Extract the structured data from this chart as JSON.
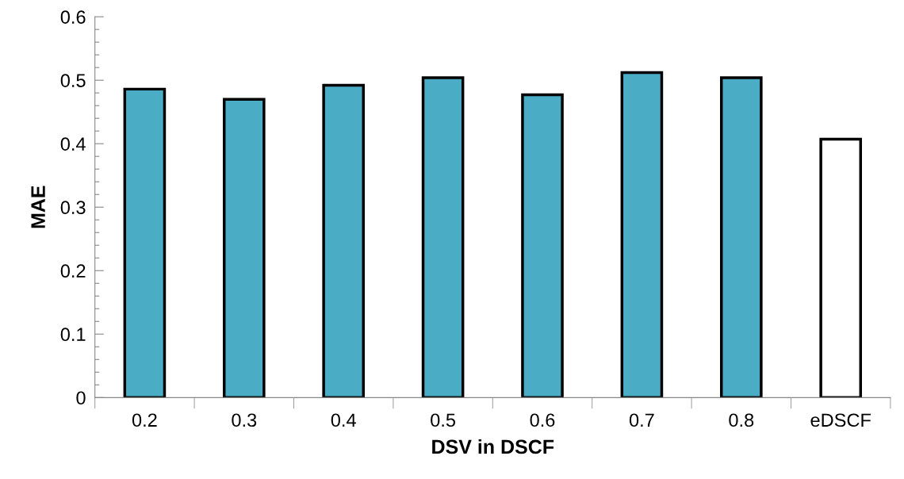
{
  "chart_data": {
    "type": "bar",
    "xlabel": "DSV in DSCF",
    "ylabel": "MAE",
    "categories": [
      "0.2",
      "0.3",
      "0.4",
      "0.5",
      "0.6",
      "0.7",
      "0.8",
      "eDSCF"
    ],
    "values": [
      0.486,
      0.47,
      0.492,
      0.504,
      0.477,
      0.512,
      0.504,
      0.407
    ],
    "colors": [
      "#4bacc6",
      "#4bacc6",
      "#4bacc6",
      "#4bacc6",
      "#4bacc6",
      "#4bacc6",
      "#4bacc6",
      "#ffffff"
    ],
    "ylim": [
      0,
      0.6
    ],
    "yticks": [
      0,
      {
        "value": 0.02,
        "label": null
      },
      {
        "value": 0.04,
        "label": null
      },
      {
        "value": 0.06,
        "label": null
      },
      {
        "value": 0.08,
        "label": null
      },
      0.1,
      {
        "value": 0.12,
        "label": null
      },
      {
        "value": 0.14,
        "label": null
      },
      {
        "value": 0.16,
        "label": null
      },
      {
        "value": 0.18,
        "label": null
      },
      0.2,
      {
        "value": 0.22,
        "label": null
      },
      {
        "value": 0.24,
        "label": null
      },
      {
        "value": 0.26,
        "label": null
      },
      {
        "value": 0.28,
        "label": null
      },
      0.3,
      {
        "value": 0.32,
        "label": null
      },
      {
        "value": 0.34,
        "label": null
      },
      {
        "value": 0.36,
        "label": null
      },
      {
        "value": 0.38,
        "label": null
      },
      0.4,
      {
        "value": 0.42,
        "label": null
      },
      {
        "value": 0.44,
        "label": null
      },
      {
        "value": 0.46,
        "label": null
      },
      {
        "value": 0.48,
        "label": null
      },
      0.5,
      {
        "value": 0.52,
        "label": null
      },
      {
        "value": 0.54,
        "label": null
      },
      {
        "value": 0.56,
        "label": null
      },
      {
        "value": 0.58,
        "label": null
      },
      0.6
    ],
    "grid": false
  }
}
